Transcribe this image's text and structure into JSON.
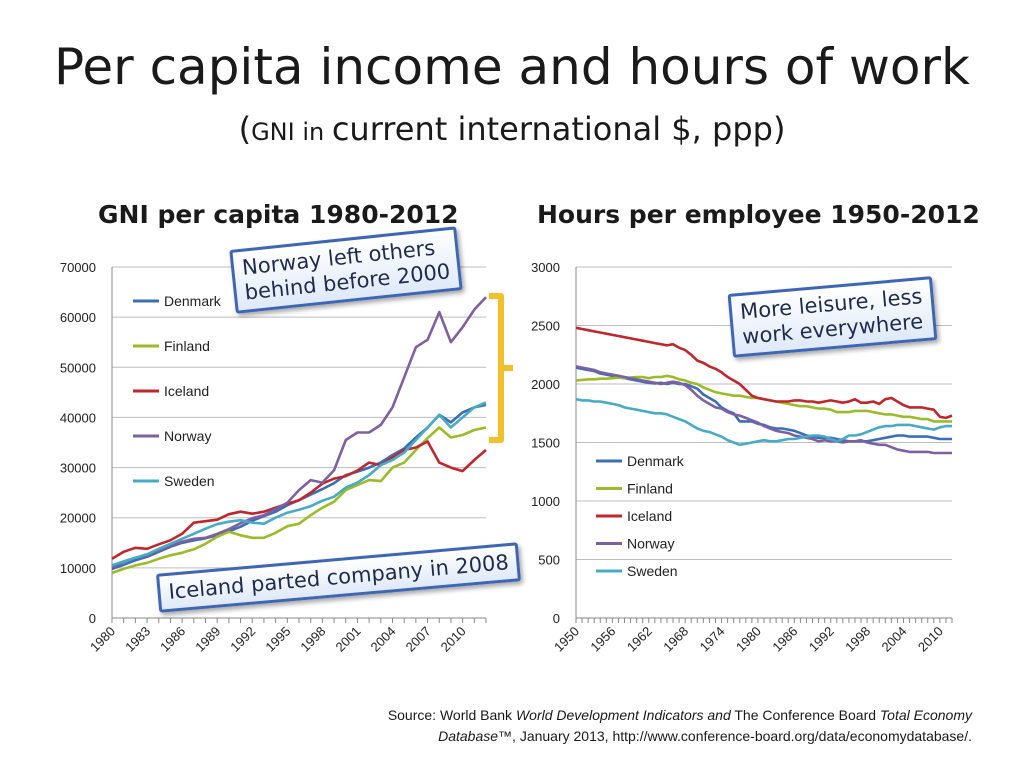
{
  "page": {
    "title": "Per capita income and hours of work",
    "subtitle_open": "(",
    "subtitle_small": "GNI in ",
    "subtitle_rest": "current international $, ppp)",
    "chart1_title": "GNI per capita 1980-2012",
    "chart2_title": "Hours per employee 1950-2012",
    "callout_norway": "Norway left others\nbehind before 2000",
    "callout_leisure": "More leisure, less\nwork everywhere",
    "callout_iceland": "Iceland parted company in 2008",
    "source_prefix": "Source: World Bank ",
    "source_wdi": "World Development Indicators and",
    "source_mid": " The Conference Board ",
    "source_ted1": "Total Economy",
    "source_ted2": "Database",
    "source_tail": "™, January 2013, http://www.conference-board.org/data/economydatabase/.",
    "bracket_color": "#f2c02b"
  },
  "chart_data": [
    {
      "type": "line",
      "title": "GNI per capita 1980-2012",
      "x": [
        1980,
        1981,
        1982,
        1983,
        1984,
        1985,
        1986,
        1987,
        1988,
        1989,
        1990,
        1991,
        1992,
        1993,
        1994,
        1995,
        1996,
        1997,
        1998,
        1999,
        2000,
        2001,
        2002,
        2003,
        2004,
        2005,
        2006,
        2007,
        2008,
        2009,
        2010,
        2011,
        2012
      ],
      "xticks": [
        1980,
        1983,
        1986,
        1989,
        1992,
        1995,
        1998,
        2001,
        2004,
        2007,
        2010
      ],
      "ylim": [
        0,
        70000
      ],
      "yticks": [
        0,
        10000,
        20000,
        30000,
        40000,
        50000,
        60000,
        70000
      ],
      "grid": true,
      "legend": "left",
      "series": [
        {
          "name": "Denmark",
          "color": "#3d6db5",
          "values": [
            9800,
            10600,
            11500,
            12200,
            13200,
            14200,
            15000,
            15500,
            15900,
            16500,
            17300,
            18200,
            19400,
            20300,
            21200,
            22500,
            23500,
            24600,
            25700,
            26900,
            28500,
            29200,
            30000,
            31000,
            32500,
            33800,
            36000,
            38000,
            40500,
            39000,
            41000,
            42000,
            42500
          ]
        },
        {
          "name": "Finland",
          "color": "#9bbb2a",
          "values": [
            9000,
            9800,
            10500,
            11000,
            11800,
            12500,
            13000,
            13700,
            14800,
            16200,
            17200,
            16500,
            16000,
            16000,
            17000,
            18300,
            18800,
            20500,
            22000,
            23200,
            25500,
            26500,
            27500,
            27300,
            30000,
            31000,
            33500,
            35900,
            38000,
            36000,
            36500,
            37500,
            38000
          ]
        },
        {
          "name": "Iceland",
          "color": "#c0272d",
          "values": [
            11800,
            13200,
            14000,
            13800,
            14700,
            15500,
            16800,
            19000,
            19300,
            19600,
            20700,
            21200,
            20800,
            21200,
            22000,
            22800,
            23500,
            25000,
            26800,
            27800,
            28300,
            29400,
            31000,
            30500,
            32000,
            33500,
            34000,
            35200,
            31000,
            30000,
            29300,
            31500,
            33500
          ]
        },
        {
          "name": "Norway",
          "color": "#7d60a0",
          "values": [
            10200,
            11200,
            12000,
            12500,
            13500,
            14500,
            15200,
            15800,
            16000,
            16800,
            17700,
            18900,
            19900,
            20500,
            21700,
            23000,
            25500,
            27500,
            27000,
            29500,
            35500,
            37000,
            37000,
            38500,
            42000,
            48000,
            54000,
            55500,
            61000,
            55000,
            58000,
            61500,
            64000
          ]
        },
        {
          "name": "Sweden",
          "color": "#47abc6",
          "values": [
            10500,
            11300,
            12000,
            12700,
            13800,
            14800,
            15800,
            16800,
            17800,
            18700,
            19200,
            19500,
            19000,
            18800,
            20000,
            21000,
            21600,
            22300,
            23400,
            24200,
            26000,
            27000,
            28500,
            30500,
            31500,
            33000,
            35500,
            38000,
            40500,
            38000,
            40000,
            42000,
            43000
          ]
        }
      ]
    },
    {
      "type": "line",
      "title": "Hours per employee 1950-2012",
      "x": [
        1950,
        1951,
        1952,
        1953,
        1954,
        1955,
        1956,
        1957,
        1958,
        1959,
        1960,
        1961,
        1962,
        1963,
        1964,
        1965,
        1966,
        1967,
        1968,
        1969,
        1970,
        1971,
        1972,
        1973,
        1974,
        1975,
        1976,
        1977,
        1978,
        1979,
        1980,
        1981,
        1982,
        1983,
        1984,
        1985,
        1986,
        1987,
        1988,
        1989,
        1990,
        1991,
        1992,
        1993,
        1994,
        1995,
        1996,
        1997,
        1998,
        1999,
        2000,
        2001,
        2002,
        2003,
        2004,
        2005,
        2006,
        2007,
        2008,
        2009,
        2010,
        2011,
        2012
      ],
      "xticks": [
        1950,
        1956,
        1962,
        1968,
        1974,
        1980,
        1986,
        1992,
        1998,
        2004,
        2010
      ],
      "ylim": [
        0,
        3000
      ],
      "yticks": [
        0,
        500,
        1000,
        1500,
        2000,
        2500,
        3000
      ],
      "grid": true,
      "legend": "right",
      "series": [
        {
          "name": "Denmark",
          "color": "#3d6db5",
          "values": [
            2140,
            2130,
            2120,
            2110,
            2090,
            2080,
            2070,
            2060,
            2050,
            2040,
            2030,
            2020,
            2010,
            2005,
            2010,
            2000,
            2010,
            2000,
            2000,
            1980,
            1960,
            1910,
            1880,
            1850,
            1800,
            1770,
            1750,
            1680,
            1680,
            1680,
            1660,
            1650,
            1630,
            1620,
            1620,
            1610,
            1600,
            1580,
            1560,
            1550,
            1540,
            1540,
            1540,
            1530,
            1520,
            1510,
            1510,
            1510,
            1510,
            1520,
            1530,
            1540,
            1550,
            1560,
            1560,
            1550,
            1550,
            1550,
            1550,
            1540,
            1530,
            1530,
            1530
          ]
        },
        {
          "name": "Finland",
          "color": "#9bbb2a",
          "values": [
            2030,
            2035,
            2040,
            2040,
            2045,
            2045,
            2050,
            2055,
            2050,
            2055,
            2060,
            2060,
            2050,
            2060,
            2060,
            2070,
            2060,
            2040,
            2030,
            2010,
            2000,
            1970,
            1950,
            1930,
            1920,
            1910,
            1900,
            1900,
            1890,
            1880,
            1880,
            1870,
            1860,
            1850,
            1840,
            1830,
            1820,
            1810,
            1810,
            1800,
            1790,
            1790,
            1780,
            1760,
            1760,
            1760,
            1770,
            1770,
            1770,
            1760,
            1750,
            1740,
            1740,
            1730,
            1720,
            1720,
            1710,
            1700,
            1700,
            1680,
            1680,
            1680,
            1680
          ]
        },
        {
          "name": "Iceland",
          "color": "#c0272d",
          "values": [
            2480,
            2470,
            2460,
            2450,
            2440,
            2430,
            2420,
            2410,
            2400,
            2390,
            2380,
            2370,
            2360,
            2350,
            2340,
            2330,
            2340,
            2310,
            2290,
            2250,
            2200,
            2180,
            2150,
            2130,
            2100,
            2060,
            2030,
            2000,
            1950,
            1900,
            1880,
            1870,
            1860,
            1850,
            1850,
            1850,
            1860,
            1860,
            1850,
            1850,
            1840,
            1850,
            1860,
            1850,
            1840,
            1850,
            1870,
            1840,
            1840,
            1850,
            1830,
            1870,
            1880,
            1850,
            1820,
            1800,
            1800,
            1800,
            1790,
            1780,
            1720,
            1710,
            1730
          ]
        },
        {
          "name": "Norway",
          "color": "#7d60a0",
          "values": [
            2150,
            2140,
            2130,
            2120,
            2100,
            2090,
            2080,
            2070,
            2060,
            2050,
            2040,
            2030,
            2020,
            2010,
            2000,
            2010,
            2020,
            2010,
            1990,
            1950,
            1900,
            1860,
            1830,
            1800,
            1790,
            1760,
            1740,
            1730,
            1710,
            1690,
            1670,
            1640,
            1620,
            1600,
            1590,
            1580,
            1560,
            1550,
            1540,
            1530,
            1510,
            1520,
            1510,
            1510,
            1500,
            1510,
            1510,
            1520,
            1500,
            1490,
            1480,
            1480,
            1460,
            1440,
            1430,
            1420,
            1420,
            1420,
            1420,
            1410,
            1410,
            1410,
            1410
          ]
        },
        {
          "name": "Sweden",
          "color": "#47abc6",
          "values": [
            1870,
            1860,
            1860,
            1850,
            1850,
            1840,
            1830,
            1820,
            1800,
            1790,
            1780,
            1770,
            1760,
            1750,
            1750,
            1740,
            1720,
            1700,
            1680,
            1650,
            1620,
            1600,
            1590,
            1570,
            1550,
            1520,
            1500,
            1480,
            1490,
            1500,
            1510,
            1520,
            1510,
            1510,
            1520,
            1530,
            1530,
            1540,
            1550,
            1560,
            1560,
            1550,
            1530,
            1510,
            1530,
            1560,
            1560,
            1570,
            1590,
            1610,
            1630,
            1640,
            1640,
            1650,
            1650,
            1650,
            1640,
            1630,
            1620,
            1610,
            1630,
            1640,
            1640
          ]
        }
      ]
    }
  ]
}
